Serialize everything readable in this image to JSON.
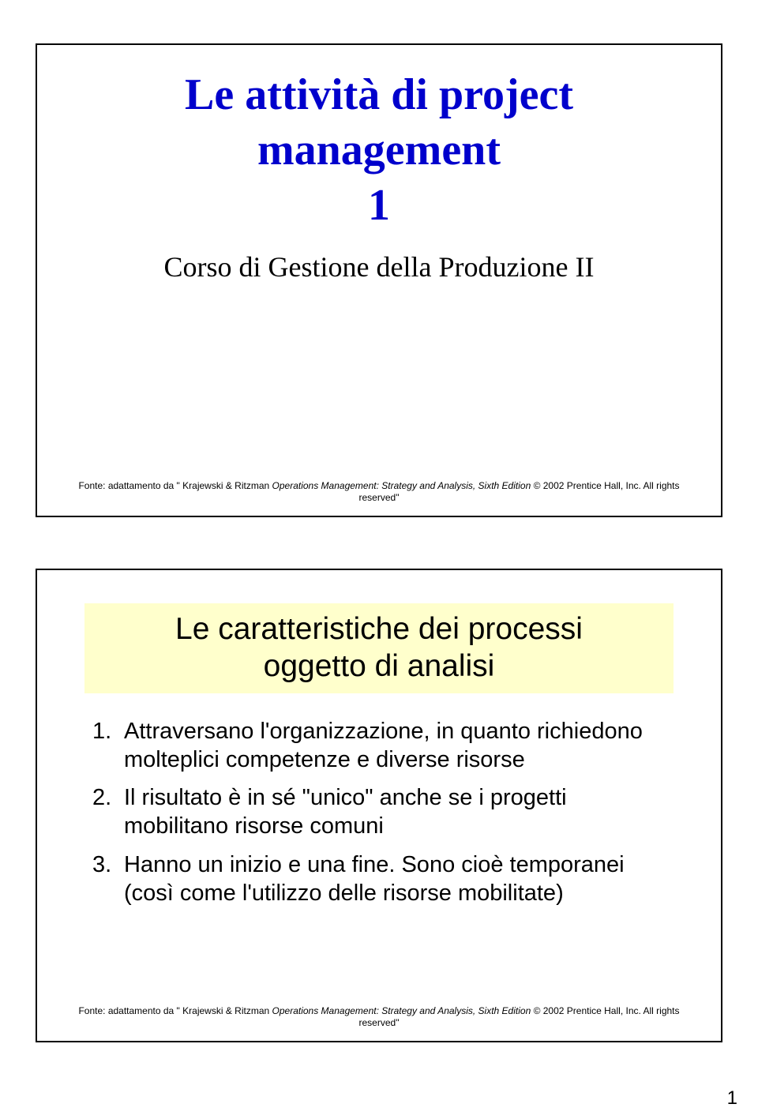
{
  "slide1": {
    "title_line1": "Le attività di project",
    "title_line2": "management",
    "title_line3": "1",
    "subtitle": "Corso di Gestione della Produzione II",
    "footnote_pre": "Fonte: adattamento da \" Krajewski & Ritzman ",
    "footnote_ital": "Operations Management: Strategy and Analysis, Sixth Edition",
    "footnote_post": " © 2002 Prentice Hall, Inc. All rights reserved\""
  },
  "slide2": {
    "heading_line1": "Le caratteristiche dei processi",
    "heading_line2": "oggetto di analisi",
    "items": [
      {
        "num": "1.",
        "text": "Attraversano l'organizzazione, in quanto richiedono molteplici competenze e diverse risorse"
      },
      {
        "num": "2.",
        "text": "Il risultato è in sé \"unico\" anche se i progetti mobilitano risorse comuni"
      },
      {
        "num": "3.",
        "text": "Hanno un inizio e una fine. Sono cioè temporanei (così come l'utilizzo delle risorse mobilitate)"
      }
    ],
    "footnote_pre": "Fonte: adattamento da \" Krajewski & Ritzman ",
    "footnote_ital": "Operations Management: Strategy and Analysis, Sixth Edition",
    "footnote_post": " © 2002 Prentice Hall, Inc. All rights reserved\""
  },
  "page_number": "1",
  "colors": {
    "title_color": "#0000cc",
    "heading_bg": "#ffffcc",
    "text_color": "#000000",
    "border_color": "#000000",
    "page_bg": "#ffffff"
  },
  "typography": {
    "title_font": "Comic Sans MS",
    "title_size_pt": 42,
    "subtitle_size_pt": 27,
    "heading_size_pt": 29,
    "body_size_pt": 22,
    "footnote_size_pt": 9
  }
}
